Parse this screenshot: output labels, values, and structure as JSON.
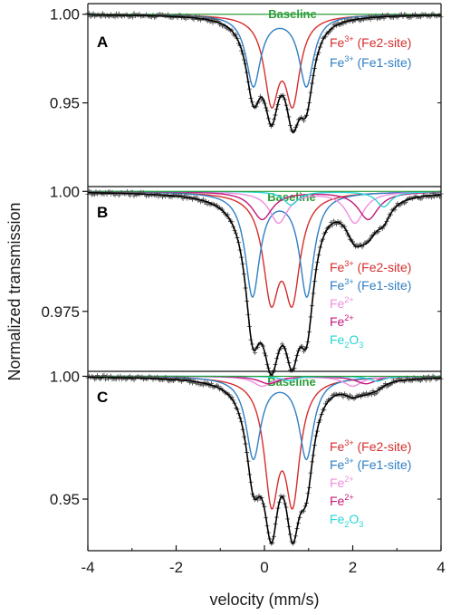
{
  "chart_data": {
    "type": "line",
    "xlabel": "velocity (mm/s)",
    "ylabel": "Normalized transmission",
    "xlim": [
      -4,
      4
    ],
    "x_ticks": [
      "-4",
      "-2",
      "0",
      "2",
      "4"
    ],
    "colors": {
      "baseline": "#2e9e3a",
      "fe3_fe2": "#d62d2d",
      "fe3_fe1": "#2f7fc4",
      "fe2_light": "#f08ce0",
      "fe2_dark": "#c2187a",
      "fe2o3": "#2ad4d4",
      "data": "#2a2a2a"
    },
    "panels": [
      {
        "letter": "A",
        "ylim": [
          0.913,
          1.006
        ],
        "y_ticks": [
          1.0,
          0.95
        ],
        "y_tick_labels": [
          "1.00",
          "0.95"
        ],
        "baseline_label": "Baseline",
        "legend": [
          {
            "ion": "Fe",
            "charge": "3+",
            "site": " (Fe2-site)",
            "color": "#d62d2d"
          },
          {
            "ion": "Fe",
            "charge": "3+",
            "site": " (Fe1-site)",
            "color": "#2f7fc4"
          }
        ],
        "components": [
          {
            "name": "Fe3+ (Fe2-site)",
            "color": "#d62d2d",
            "lines": [
              {
                "center": 0.16,
                "width": 0.2,
                "depth": 0.046
              },
              {
                "center": 0.64,
                "width": 0.2,
                "depth": 0.046
              }
            ]
          },
          {
            "name": "Fe3+ (Fe1-site)",
            "color": "#2f7fc4",
            "lines": [
              {
                "center": -0.25,
                "width": 0.2,
                "depth": 0.04
              },
              {
                "center": 0.95,
                "width": 0.2,
                "depth": 0.04
              }
            ]
          }
        ]
      },
      {
        "letter": "B",
        "ylim": [
          0.9625,
          1.001
        ],
        "y_ticks": [
          1.0,
          0.975
        ],
        "y_tick_labels": [
          "1.00",
          "0.975"
        ],
        "baseline_label": "Baseline",
        "legend": [
          {
            "ion": "Fe",
            "charge": "3+",
            "site": " (Fe2-site)",
            "color": "#d62d2d"
          },
          {
            "ion": "Fe",
            "charge": "3+",
            "site": " (Fe1-site)",
            "color": "#2f7fc4"
          },
          {
            "ion": "Fe",
            "charge": "2+",
            "site": "",
            "color": "#f08ce0"
          },
          {
            "ion": "Fe",
            "charge": "2+",
            "site": "",
            "color": "#c2187a"
          },
          {
            "ion": "Fe2O3",
            "charge": "",
            "site": "",
            "color": "#2ad4d4"
          }
        ],
        "components": [
          {
            "name": "Fe3+ (Fe2-site)",
            "color": "#d62d2d",
            "lines": [
              {
                "center": 0.15,
                "width": 0.22,
                "depth": 0.0205
              },
              {
                "center": 0.63,
                "width": 0.22,
                "depth": 0.0205
              }
            ]
          },
          {
            "name": "Fe3+ (Fe1-site)",
            "color": "#2f7fc4",
            "lines": [
              {
                "center": -0.27,
                "width": 0.2,
                "depth": 0.0215
              },
              {
                "center": 0.96,
                "width": 0.2,
                "depth": 0.0215
              }
            ]
          },
          {
            "name": "Fe2+",
            "color": "#f08ce0",
            "lines": [
              {
                "center": 0.32,
                "width": 0.25,
                "depth": 0.0065
              },
              {
                "center": 2.05,
                "width": 0.25,
                "depth": 0.0065
              }
            ]
          },
          {
            "name": "Fe2+",
            "color": "#c2187a",
            "lines": [
              {
                "center": -0.05,
                "width": 0.28,
                "depth": 0.0058
              },
              {
                "center": 2.35,
                "width": 0.28,
                "depth": 0.0058
              }
            ]
          },
          {
            "name": "Fe2O3",
            "color": "#2ad4d4",
            "lines": [
              {
                "center": 0.6,
                "width": 0.2,
                "depth": 0.0028
              },
              {
                "center": 2.7,
                "width": 0.2,
                "depth": 0.0032
              }
            ]
          }
        ]
      },
      {
        "letter": "C",
        "ylim": [
          0.929,
          1.002
        ],
        "y_ticks": [
          1.0,
          0.95
        ],
        "y_tick_labels": [
          "1.00",
          "0.95"
        ],
        "baseline_label": "Baseline",
        "legend": [
          {
            "ion": "Fe",
            "charge": "3+",
            "site": " (Fe2-site)",
            "color": "#d62d2d"
          },
          {
            "ion": "Fe",
            "charge": "3+",
            "site": " (Fe1-site)",
            "color": "#2f7fc4"
          },
          {
            "ion": "Fe",
            "charge": "2+",
            "site": "",
            "color": "#f08ce0"
          },
          {
            "ion": "Fe",
            "charge": "2+",
            "site": "",
            "color": "#c2187a"
          },
          {
            "ion": "Fe2O3",
            "charge": "",
            "site": "",
            "color": "#2ad4d4"
          }
        ],
        "components": [
          {
            "name": "Fe3+ (Fe2-site)",
            "color": "#d62d2d",
            "lines": [
              {
                "center": 0.16,
                "width": 0.2,
                "depth": 0.047
              },
              {
                "center": 0.64,
                "width": 0.2,
                "depth": 0.047
              }
            ]
          },
          {
            "name": "Fe3+ (Fe1-site)",
            "color": "#2f7fc4",
            "lines": [
              {
                "center": -0.25,
                "width": 0.2,
                "depth": 0.033
              },
              {
                "center": 0.95,
                "width": 0.2,
                "depth": 0.033
              }
            ]
          },
          {
            "name": "Fe2+",
            "color": "#f08ce0",
            "lines": [
              {
                "center": -0.05,
                "width": 0.25,
                "depth": 0.004
              },
              {
                "center": 2.0,
                "width": 0.25,
                "depth": 0.004
              }
            ]
          },
          {
            "name": "Fe2+",
            "color": "#c2187a",
            "lines": [
              {
                "center": 0.1,
                "width": 0.28,
                "depth": 0.003
              },
              {
                "center": 2.3,
                "width": 0.28,
                "depth": 0.003
              }
            ]
          },
          {
            "name": "Fe2O3",
            "color": "#2ad4d4",
            "lines": [
              {
                "center": 0.55,
                "width": 0.2,
                "depth": 0.0018
              },
              {
                "center": 2.55,
                "width": 0.2,
                "depth": 0.002
              }
            ]
          }
        ]
      }
    ]
  }
}
